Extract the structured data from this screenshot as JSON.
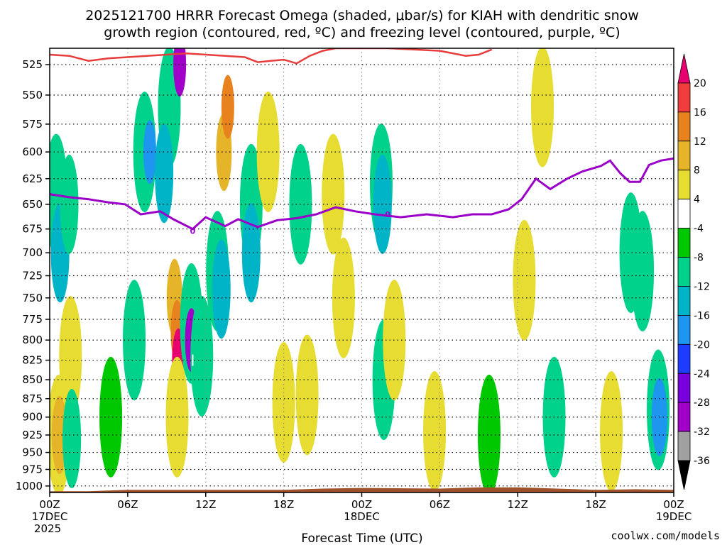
{
  "chart_data": {
    "type": "heatmap",
    "title_line1": "2025121700 HRRR Forecast Omega (shaded, μbar/s) for KIAH with dendritic snow",
    "title_line2": "growth region (contoured, red, ºC) and freezing level (contoured, purple, ºC)",
    "xlabel": "Forecast Time (UTC)",
    "credit": "coolwx.com/models",
    "x_ticks": [
      {
        "hour": 0,
        "l1": "00Z",
        "l2": "17DEC",
        "l3": "2025"
      },
      {
        "hour": 6,
        "l1": "06Z",
        "l2": "",
        "l3": ""
      },
      {
        "hour": 12,
        "l1": "12Z",
        "l2": "",
        "l3": ""
      },
      {
        "hour": 18,
        "l1": "18Z",
        "l2": "",
        "l3": ""
      },
      {
        "hour": 24,
        "l1": "00Z",
        "l2": "18DEC",
        "l3": ""
      },
      {
        "hour": 30,
        "l1": "06Z",
        "l2": "",
        "l3": ""
      },
      {
        "hour": 36,
        "l1": "12Z",
        "l2": "",
        "l3": ""
      },
      {
        "hour": 42,
        "l1": "18Z",
        "l2": "",
        "l3": ""
      },
      {
        "hour": 48,
        "l1": "00Z",
        "l2": "19DEC",
        "l3": ""
      }
    ],
    "x_range_hours": [
      0,
      48
    ],
    "y_ticks": [
      525,
      550,
      575,
      600,
      625,
      650,
      675,
      700,
      725,
      750,
      775,
      800,
      825,
      850,
      875,
      900,
      925,
      950,
      975,
      1000
    ],
    "y_range_hPa": [
      512,
      1010
    ],
    "y_scale": "log",
    "grid": true,
    "colorbar": {
      "labels": [
        "20",
        "16",
        "12",
        "8",
        "4",
        "-4",
        "-8",
        "-12",
        "-16",
        "-20",
        "-24",
        "-28",
        "-32",
        "-36"
      ],
      "colors": [
        "#e8006e",
        "#f03c3c",
        "#e8821e",
        "#e6b428",
        "#e6dc32",
        "#ffffff",
        "#00c800",
        "#00d28c",
        "#00b4c8",
        "#1e96f0",
        "#1e3cff",
        "#7800dc",
        "#a000c8",
        "#a0a0a0",
        "#000000"
      ]
    },
    "omega_cells": [
      {
        "t": 0.5,
        "p": 640,
        "c": 1,
        "v": -8
      },
      {
        "t": 0.8,
        "p": 700,
        "c": 2,
        "v": -12
      },
      {
        "t": 1.5,
        "p": 650,
        "c": 2,
        "v": -8
      },
      {
        "t": 1.6,
        "p": 820,
        "c": 1,
        "v": 4
      },
      {
        "t": 0.7,
        "p": 925,
        "c": 1,
        "v": 4
      },
      {
        "t": 0.75,
        "p": 925,
        "c": 3,
        "v": 8
      },
      {
        "t": 1.7,
        "p": 930,
        "c": 2,
        "v": -8
      },
      {
        "t": 4.7,
        "p": 900,
        "c": 1,
        "v": -4
      },
      {
        "t": 6.5,
        "p": 800,
        "c": 1,
        "v": -8
      },
      {
        "t": 7.3,
        "p": 600,
        "c": 1,
        "v": -8
      },
      {
        "t": 7.7,
        "p": 600,
        "c": 4,
        "v": -16
      },
      {
        "t": 9.2,
        "p": 560,
        "c": 1,
        "v": -8
      },
      {
        "t": 10.0,
        "p": 525,
        "c": 6,
        "v": -28
      },
      {
        "t": 8.8,
        "p": 620,
        "c": 2,
        "v": -12
      },
      {
        "t": 9.6,
        "p": 750,
        "c": 3,
        "v": 8
      },
      {
        "t": 9.8,
        "p": 790,
        "c": 4,
        "v": 12
      },
      {
        "t": 9.9,
        "p": 825,
        "c": 5,
        "v": 20
      },
      {
        "t": 9.8,
        "p": 900,
        "c": 1,
        "v": 4
      },
      {
        "t": 10.9,
        "p": 780,
        "c": 1,
        "v": -8
      },
      {
        "t": 10.9,
        "p": 800,
        "c": 6,
        "v": -28
      },
      {
        "t": 11.7,
        "p": 820,
        "c": 1,
        "v": -8
      },
      {
        "t": 12.9,
        "p": 720,
        "c": 1,
        "v": -8
      },
      {
        "t": 13.2,
        "p": 740,
        "c": 2,
        "v": -12
      },
      {
        "t": 13.4,
        "p": 600,
        "c": 3,
        "v": 8
      },
      {
        "t": 13.7,
        "p": 560,
        "c": 4,
        "v": 12
      },
      {
        "t": 15.5,
        "p": 650,
        "c": 1,
        "v": -8
      },
      {
        "t": 15.5,
        "p": 700,
        "c": 2,
        "v": -12
      },
      {
        "t": 16.8,
        "p": 600,
        "c": 1,
        "v": 4
      },
      {
        "t": 19.3,
        "p": 650,
        "c": 1,
        "v": -8
      },
      {
        "t": 18.0,
        "p": 880,
        "c": 1,
        "v": 4
      },
      {
        "t": 19.8,
        "p": 870,
        "c": 1,
        "v": 4
      },
      {
        "t": 21.8,
        "p": 640,
        "c": 1,
        "v": 4
      },
      {
        "t": 22.6,
        "p": 750,
        "c": 1,
        "v": 4
      },
      {
        "t": 25.5,
        "p": 630,
        "c": 1,
        "v": -8
      },
      {
        "t": 25.6,
        "p": 650,
        "c": 2,
        "v": -12
      },
      {
        "t": 25.7,
        "p": 850,
        "c": 1,
        "v": -8
      },
      {
        "t": 26.5,
        "p": 800,
        "c": 1,
        "v": 4
      },
      {
        "t": 29.6,
        "p": 920,
        "c": 1,
        "v": 4
      },
      {
        "t": 33.8,
        "p": 925,
        "c": 1,
        "v": -4
      },
      {
        "t": 36.5,
        "p": 730,
        "c": 1,
        "v": 4
      },
      {
        "t": 37.9,
        "p": 560,
        "c": 1,
        "v": 4
      },
      {
        "t": 38.8,
        "p": 900,
        "c": 1,
        "v": -8
      },
      {
        "t": 43.2,
        "p": 920,
        "c": 1,
        "v": 4
      },
      {
        "t": 46.8,
        "p": 890,
        "c": 1,
        "v": -8
      },
      {
        "t": 46.9,
        "p": 900,
        "c": 3,
        "v": -16
      },
      {
        "t": 45.6,
        "p": 720,
        "c": 1,
        "v": -8
      },
      {
        "t": 44.7,
        "p": 700,
        "c": 1,
        "v": -8
      }
    ],
    "dgz_red": [
      {
        "t": 0,
        "p": 517
      },
      {
        "t": 1.5,
        "p": 518
      },
      {
        "t": 3,
        "p": 522
      },
      {
        "t": 4.5,
        "p": 520
      },
      {
        "t": 6,
        "p": 519
      },
      {
        "t": 7.5,
        "p": 518
      },
      {
        "t": 9,
        "p": 517
      },
      {
        "t": 10.5,
        "p": 516
      },
      {
        "t": 12,
        "p": 517
      },
      {
        "t": 13.5,
        "p": 518
      },
      {
        "t": 15,
        "p": 519
      },
      {
        "t": 16,
        "p": 523
      },
      {
        "t": 17,
        "p": 522
      },
      {
        "t": 18,
        "p": 521
      },
      {
        "t": 19,
        "p": 524
      },
      {
        "t": 20,
        "p": 518
      },
      {
        "t": 21,
        "p": 514
      },
      {
        "t": 22,
        "p": 512
      },
      {
        "t": 23,
        "p": 512
      },
      {
        "t": 26,
        "p": 512
      },
      {
        "t": 28,
        "p": 513
      },
      {
        "t": 30,
        "p": 514
      },
      {
        "t": 32,
        "p": 518
      },
      {
        "t": 33,
        "p": 517
      },
      {
        "t": 34,
        "p": 513
      }
    ],
    "freezing_level_purple": [
      {
        "t": 0,
        "p": 640
      },
      {
        "t": 1.5,
        "p": 643
      },
      {
        "t": 3,
        "p": 645
      },
      {
        "t": 4.5,
        "p": 648
      },
      {
        "t": 5.8,
        "p": 650
      },
      {
        "t": 7,
        "p": 660
      },
      {
        "t": 8.5,
        "p": 657
      },
      {
        "t": 9.5,
        "p": 665
      },
      {
        "t": 11,
        "p": 675
      },
      {
        "t": 12,
        "p": 663
      },
      {
        "t": 13.5,
        "p": 672
      },
      {
        "t": 14.5,
        "p": 665
      },
      {
        "t": 16,
        "p": 673
      },
      {
        "t": 17.5,
        "p": 666
      },
      {
        "t": 19,
        "p": 664
      },
      {
        "t": 20.5,
        "p": 660
      },
      {
        "t": 22,
        "p": 653
      },
      {
        "t": 23.5,
        "p": 657
      },
      {
        "t": 25,
        "p": 660
      },
      {
        "t": 27,
        "p": 663
      },
      {
        "t": 29,
        "p": 660
      },
      {
        "t": 31,
        "p": 663
      },
      {
        "t": 32.5,
        "p": 660
      },
      {
        "t": 34,
        "p": 660
      },
      {
        "t": 35.3,
        "p": 655
      },
      {
        "t": 36.3,
        "p": 645
      },
      {
        "t": 37.4,
        "p": 625
      },
      {
        "t": 38.5,
        "p": 635
      },
      {
        "t": 39.8,
        "p": 625
      },
      {
        "t": 41,
        "p": 618
      },
      {
        "t": 42.4,
        "p": 613
      },
      {
        "t": 43.1,
        "p": 608
      },
      {
        "t": 43.9,
        "p": 620
      },
      {
        "t": 44.6,
        "p": 628
      },
      {
        "t": 45.4,
        "p": 628
      },
      {
        "t": 46.1,
        "p": 612
      },
      {
        "t": 47,
        "p": 608
      },
      {
        "t": 48,
        "p": 606
      }
    ],
    "freezing_label": "0",
    "freezing_label_points": [
      {
        "t": 11,
        "p": 677
      },
      {
        "t": 26,
        "p": 660
      }
    ],
    "dgz_label_point": {
      "t": 11,
      "p": 825
    },
    "terrain_color": "#a0522d",
    "terrain": [
      {
        "t": 0,
        "p": 1008
      },
      {
        "t": 3,
        "p": 1008
      },
      {
        "t": 6,
        "p": 1006
      },
      {
        "t": 12,
        "p": 1006
      },
      {
        "t": 18,
        "p": 1006
      },
      {
        "t": 21,
        "p": 1004
      },
      {
        "t": 24,
        "p": 1003
      },
      {
        "t": 30,
        "p": 1004
      },
      {
        "t": 33,
        "p": 1002
      },
      {
        "t": 36,
        "p": 1002
      },
      {
        "t": 39,
        "p": 1004
      },
      {
        "t": 42,
        "p": 1006
      },
      {
        "t": 45,
        "p": 1005
      },
      {
        "t": 48,
        "p": 1006
      }
    ]
  }
}
